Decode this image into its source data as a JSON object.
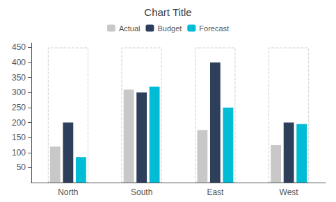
{
  "chart_data": {
    "type": "bar",
    "title": "Chart Title",
    "categories": [
      "North",
      "South",
      "East",
      "West"
    ],
    "series": [
      {
        "name": "Actual",
        "color": "#c8c8c8",
        "values": [
          120,
          310,
          175,
          125
        ]
      },
      {
        "name": "Budget",
        "color": "#2e3f5c",
        "values": [
          200,
          300,
          400,
          200
        ]
      },
      {
        "name": "Forecast",
        "color": "#00bcd4",
        "values": [
          85,
          320,
          250,
          195
        ]
      }
    ],
    "background_bar": 450,
    "ylim": [
      0,
      465
    ],
    "yticks": [
      50,
      100,
      150,
      200,
      250,
      300,
      350,
      400,
      450
    ],
    "grid": false,
    "legend": "top"
  }
}
